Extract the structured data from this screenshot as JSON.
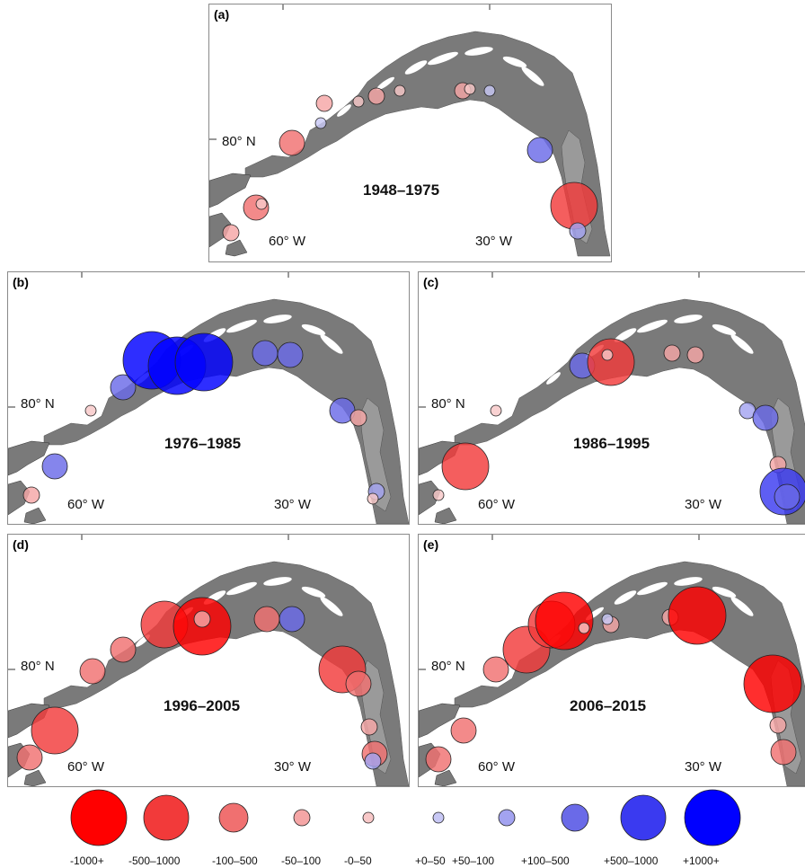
{
  "panels": [
    {
      "id": "a",
      "label": "(a)",
      "period": "1948–1975",
      "lat_label": "80° N",
      "lon_labels": [
        "60° W",
        "30° W"
      ]
    },
    {
      "id": "b",
      "label": "(b)",
      "period": "1976–1985",
      "lat_label": "80° N",
      "lon_labels": [
        "60° W",
        "30° W"
      ]
    },
    {
      "id": "c",
      "label": "(c)",
      "period": "1986–1995",
      "lat_label": "80° N",
      "lon_labels": [
        "60° W",
        "30° W"
      ]
    },
    {
      "id": "d",
      "label": "(d)",
      "period": "1996–2005",
      "lat_label": "80° N",
      "lon_labels": [
        "60° W",
        "30° W"
      ]
    },
    {
      "id": "e",
      "label": "(e)",
      "period": "2006–2015",
      "lat_label": "80° N",
      "lon_labels": [
        "60° W",
        "30° W"
      ]
    }
  ],
  "legend": {
    "classes": [
      {
        "label": "-1000+",
        "color": "#ff0000"
      },
      {
        "label": "-500–1000",
        "color": "#f23a3a"
      },
      {
        "label": "-100–500",
        "color": "#f07070"
      },
      {
        "label": "-50–100",
        "color": "#f5a6a6"
      },
      {
        "label": "-0–50",
        "color": "#f8c8c8"
      },
      {
        "label": "+0–50",
        "color": "#c8c8f5"
      },
      {
        "label": "+50–100",
        "color": "#a3a3f0"
      },
      {
        "label": "+100–500",
        "color": "#6a6ae8"
      },
      {
        "label": "+500–1000",
        "color": "#3a3af0"
      },
      {
        "label": "+1000+",
        "color": "#0000ff"
      }
    ]
  },
  "colors": {
    "land": "#7a7a7a",
    "border": "#8a8a8a"
  }
}
